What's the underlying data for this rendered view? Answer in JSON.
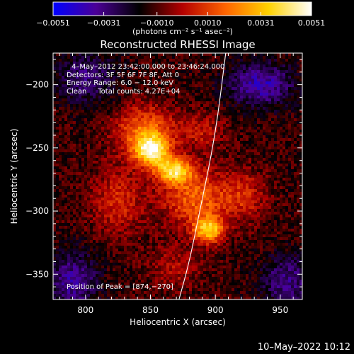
{
  "chart_data": {
    "type": "heatmap",
    "title": "Reconstructed RHESSI Image",
    "xlabel": "Heliocentric X (arcsec)",
    "ylabel": "Heliocentric Y (arcsec)",
    "xlim": [
      775,
      967
    ],
    "ylim": [
      -370,
      -175
    ],
    "x_ticks": [
      800,
      850,
      900,
      950
    ],
    "y_ticks": [
      -350,
      -300,
      -250,
      -200
    ],
    "x_tick_labels": [
      "800",
      "850",
      "900",
      "950"
    ],
    "y_tick_labels": [
      "−350",
      "−300",
      "−250",
      "−200"
    ],
    "colorbar": {
      "range": [
        -0.0051,
        0.0051
      ],
      "ticks": [
        -0.0051,
        -0.0031,
        -0.001,
        0.001,
        0.0031,
        0.0051
      ],
      "tick_labels": [
        "−0.0051",
        "−0.0031",
        "−0.0010",
        "0.0010",
        "0.0031",
        "0.0051"
      ],
      "units_label": "(photons cm⁻² s⁻¹ asec⁻²)",
      "colors": [
        "#0000ff",
        "#4b0096",
        "#000000",
        "#b40000",
        "#ff6400",
        "#ffd200",
        "#ffffff"
      ]
    },
    "info_lines": [
      "4–May–2012 23:42:00.000 to 23:46:24.000",
      "Detectors: 3F 5F 6F 7F 8F, Att 0",
      "Energy Range: 6.0 − 12.0 keV",
      "Clean     Total counts: 4.27E+04"
    ],
    "peak_label": "Position of Peak = [874,−270]",
    "limb_curve": [
      {
        "x": 908,
        "y": -175
      },
      {
        "x": 900,
        "y": -240
      },
      {
        "x": 888,
        "y": -300
      },
      {
        "x": 880,
        "y": -340
      },
      {
        "x": 872,
        "y": -370
      }
    ],
    "sources": [
      {
        "x": 851,
        "y": -252,
        "peak": 0.0051,
        "sx": 9,
        "sy": 8
      },
      {
        "x": 868,
        "y": -268,
        "peak": 0.0047,
        "sx": 10,
        "sy": 7
      },
      {
        "x": 895,
        "y": -315,
        "peak": 0.0044,
        "sx": 8,
        "sy": 7
      },
      {
        "x": 846,
        "y": -237,
        "peak": 0.003,
        "sx": 16,
        "sy": 14
      },
      {
        "x": 885,
        "y": -290,
        "peak": 0.0028,
        "sx": 18,
        "sy": 16
      },
      {
        "x": 825,
        "y": -292,
        "peak": 0.0018,
        "sx": 14,
        "sy": 18
      },
      {
        "x": 890,
        "y": -237,
        "peak": 0.0014,
        "sx": 12,
        "sy": 10
      },
      {
        "x": 922,
        "y": -288,
        "peak": 0.0016,
        "sx": 12,
        "sy": 14
      },
      {
        "x": 868,
        "y": -345,
        "peak": 0.0012,
        "sx": 14,
        "sy": 12
      },
      {
        "x": 935,
        "y": -200,
        "peak": -0.0026,
        "sx": 18,
        "sy": 12
      },
      {
        "x": 790,
        "y": -355,
        "peak": -0.0022,
        "sx": 14,
        "sy": 16
      },
      {
        "x": 800,
        "y": -195,
        "peak": -0.0018,
        "sx": 16,
        "sy": 14
      },
      {
        "x": 955,
        "y": -355,
        "peak": -0.002,
        "sx": 14,
        "sy": 14
      }
    ]
  },
  "footer": {
    "timestamp": "10–May–2022 10:12"
  }
}
